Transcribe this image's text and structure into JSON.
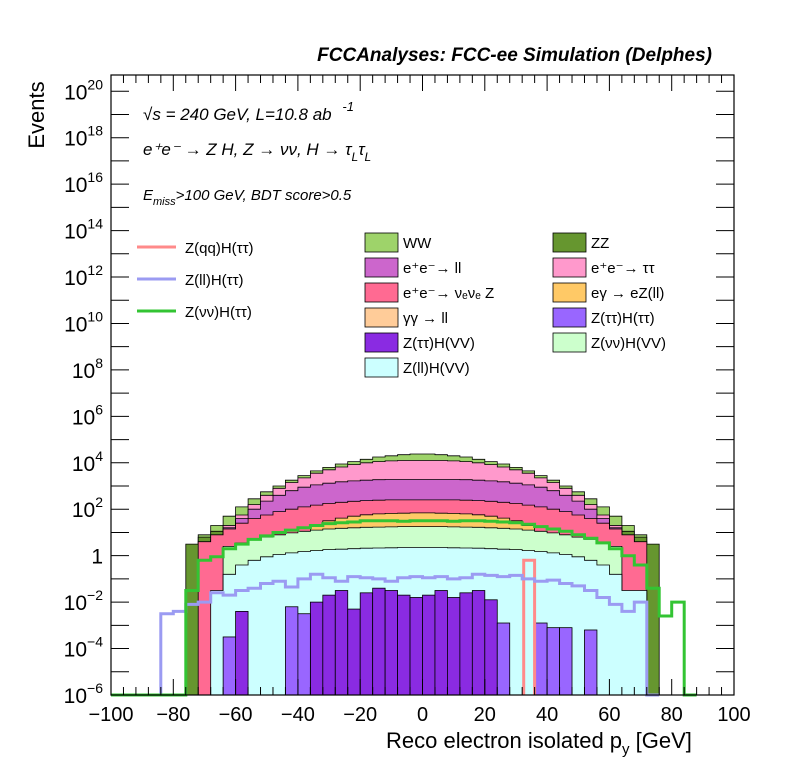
{
  "chart_data": {
    "type": "area",
    "title": "FCCAnalyses: FCC-ee Simulation (Delphes)",
    "xlabel": "Reco electron isolated p",
    "xlabel_sub": "y",
    "xlabel_unit": " [GeV]",
    "ylabel": "Events",
    "xlim": [
      -100,
      100
    ],
    "ylim_log10": [
      -6,
      20.7
    ],
    "y_log": true,
    "x_ticks": [
      "−100",
      "−80",
      "−60",
      "−40",
      "−20",
      "0",
      "20",
      "40",
      "60",
      "80",
      "100"
    ],
    "y_ticks": [
      {
        "exp": "-6",
        "label": "10",
        "sup": "−6"
      },
      {
        "exp": "-4",
        "label": "10",
        "sup": "−4"
      },
      {
        "exp": "-2",
        "label": "10",
        "sup": "−2"
      },
      {
        "exp": "0",
        "label": "1",
        "sup": ""
      },
      {
        "exp": "2",
        "label": "10",
        "sup": "2"
      },
      {
        "exp": "4",
        "label": "10",
        "sup": "4"
      },
      {
        "exp": "6",
        "label": "10",
        "sup": "6"
      },
      {
        "exp": "8",
        "label": "10",
        "sup": "8"
      },
      {
        "exp": "10",
        "label": "10",
        "sup": "10"
      },
      {
        "exp": "12",
        "label": "10",
        "sup": "12"
      },
      {
        "exp": "14",
        "label": "10",
        "sup": "14"
      },
      {
        "exp": "16",
        "label": "10",
        "sup": "16"
      },
      {
        "exp": "18",
        "label": "10",
        "sup": "18"
      },
      {
        "exp": "20",
        "label": "10",
        "sup": "20"
      }
    ],
    "annotations": {
      "energy": "= 240 GeV, L=10.8 ab",
      "energy_sqrt": "√s",
      "lumi_exp": "-1",
      "process": "e⁺e⁻ → Z H, Z → νν, H → τ",
      "process_sub": "L",
      "cuts": "E",
      "cuts_sub": "miss",
      "cuts_rest": ">100 GeV, BDT score>0.5"
    },
    "legend_signal": [
      {
        "name": "Z(qq)H(ττ)",
        "color": "#ff8a8a"
      },
      {
        "name": "Z(ll)H(ττ)",
        "color": "#9b9bf2"
      },
      {
        "name": "Z(νν)H(ττ)",
        "color": "#33c433"
      }
    ],
    "legend_bkg": [
      {
        "name": "WW",
        "color": "#9ed36a"
      },
      {
        "name": "ZZ",
        "color": "#66962f"
      },
      {
        "name": "e⁺e⁻→ ll",
        "color": "#cc66cc"
      },
      {
        "name": "e⁺e⁻→ ττ",
        "color": "#ff99cc"
      },
      {
        "name": "e⁺e⁻→ νₑνₑ Z",
        "color": "#ff6a92"
      },
      {
        "name": "eγ → eZ(ll)",
        "color": "#ffc966"
      },
      {
        "name": "γγ → ll",
        "color": "#ffcc99"
      },
      {
        "name": "Z(ττ)H(ττ)",
        "color": "#9966ff"
      },
      {
        "name": "Z(ττ)H(VV)",
        "color": "#8a2be2"
      },
      {
        "name": "Z(νν)H(VV)",
        "color": "#ccffcc"
      },
      {
        "name": "Z(ll)H(VV)",
        "color": "#ccffff"
      }
    ],
    "bin_edges_range": [
      -100,
      100
    ],
    "n_bins": 50,
    "stack_log10_tops": [
      {
        "name": "WW",
        "color": "#9ed36a",
        "values": [
          -9,
          -9,
          -9,
          -9,
          -9,
          -9,
          -9,
          0.9,
          1.3,
          1.7,
          2.1,
          2.45,
          2.75,
          3.0,
          3.25,
          3.45,
          3.65,
          3.8,
          3.95,
          4.05,
          4.15,
          4.25,
          4.3,
          4.35,
          4.38,
          4.38,
          4.35,
          4.3,
          4.25,
          4.15,
          4.05,
          3.95,
          3.8,
          3.65,
          3.45,
          3.25,
          3.0,
          2.75,
          2.45,
          2.1,
          1.7,
          1.3,
          0.9,
          -9,
          -9,
          -9,
          -9,
          -9,
          -9,
          -9
        ]
      },
      {
        "name": "ZZ",
        "color": "#66962f",
        "values": [
          -9,
          -9,
          -9,
          -9,
          -9,
          -9,
          0.5,
          0.8,
          1.05,
          1.3,
          1.55,
          1.8,
          2.0,
          2.2,
          2.4,
          2.55,
          2.7,
          2.8,
          2.9,
          3.0,
          3.05,
          3.1,
          3.12,
          3.15,
          3.15,
          3.15,
          3.15,
          3.12,
          3.1,
          3.05,
          3.0,
          2.9,
          2.8,
          2.7,
          2.55,
          2.4,
          2.2,
          2.0,
          1.8,
          1.55,
          1.3,
          1.05,
          0.8,
          0.5,
          -9,
          -9,
          -9,
          -9,
          -9,
          -9
        ]
      },
      {
        "name": "e+e- tt",
        "color": "#ff99cc",
        "values": [
          -9,
          -9,
          -9,
          -9,
          -9,
          -9,
          -9,
          -9,
          0.8,
          1.3,
          1.75,
          2.2,
          2.6,
          2.9,
          3.15,
          3.35,
          3.55,
          3.7,
          3.82,
          3.92,
          4.0,
          4.05,
          4.08,
          4.1,
          4.1,
          4.1,
          4.1,
          4.08,
          4.05,
          4.0,
          3.92,
          3.82,
          3.7,
          3.55,
          3.35,
          3.15,
          2.9,
          2.6,
          2.2,
          1.75,
          1.3,
          0.8,
          -9,
          -9,
          -9,
          -9,
          -9,
          -9,
          -9,
          -9
        ]
      },
      {
        "name": "e+e- ll",
        "color": "#cc66cc",
        "values": [
          -9,
          -9,
          -9,
          -9,
          -9,
          -9,
          -9,
          -9,
          0.7,
          1.2,
          1.6,
          2.0,
          2.35,
          2.6,
          2.8,
          2.95,
          3.05,
          3.12,
          3.18,
          3.22,
          3.25,
          3.27,
          3.28,
          3.28,
          3.28,
          3.28,
          3.28,
          3.28,
          3.27,
          3.25,
          3.22,
          3.18,
          3.12,
          3.05,
          2.95,
          2.8,
          2.6,
          2.35,
          2.0,
          1.6,
          1.2,
          0.7,
          -9,
          -9,
          -9,
          -9,
          -9,
          -9,
          -9,
          -9
        ]
      },
      {
        "name": "e+e- nunu Z",
        "color": "#ff6a92",
        "values": [
          -9,
          -9,
          -9,
          -9,
          -9,
          -9,
          -9,
          0.6,
          0.9,
          1.15,
          1.4,
          1.6,
          1.75,
          1.9,
          2.0,
          2.1,
          2.18,
          2.25,
          2.3,
          2.34,
          2.37,
          2.39,
          2.4,
          2.4,
          2.4,
          2.4,
          2.4,
          2.4,
          2.39,
          2.37,
          2.34,
          2.3,
          2.25,
          2.18,
          2.1,
          2.0,
          1.9,
          1.75,
          1.6,
          1.4,
          1.15,
          0.9,
          0.6,
          -9,
          -9,
          -9,
          -9,
          -9,
          -9,
          -9
        ]
      },
      {
        "name": "egamma",
        "color": "#ffc966",
        "values": [
          -9,
          -9,
          -9,
          -9,
          -9,
          -9,
          -9,
          -9,
          -9,
          -9,
          -9,
          -9,
          -9,
          -9,
          -9,
          -9,
          1.3,
          1.5,
          1.62,
          1.7,
          1.76,
          1.8,
          1.82,
          1.83,
          1.84,
          1.84,
          1.83,
          1.82,
          1.8,
          1.76,
          1.7,
          1.62,
          1.5,
          1.3,
          -9,
          -9,
          -9,
          -9,
          -9,
          -9,
          -9,
          -9,
          -9,
          -9,
          -9,
          -9,
          -9,
          -9,
          -9,
          -9
        ]
      },
      {
        "name": "Z(nunu)H(VV)",
        "color": "#ccffcc",
        "values": [
          -9,
          -9,
          -9,
          -9,
          -9,
          -9,
          -9,
          -9,
          -9,
          0.4,
          0.55,
          0.7,
          0.8,
          0.9,
          0.98,
          1.05,
          1.1,
          1.15,
          1.18,
          1.2,
          1.22,
          1.23,
          1.24,
          1.25,
          1.25,
          1.25,
          1.25,
          1.24,
          1.23,
          1.22,
          1.2,
          1.18,
          1.15,
          1.1,
          1.05,
          0.98,
          0.9,
          0.8,
          0.7,
          0.55,
          0.4,
          -9,
          -9,
          -9,
          -9,
          -9,
          -9,
          -9,
          -9,
          -9
        ]
      },
      {
        "name": "Z(ll)H(VV)",
        "color": "#ccffff",
        "values": [
          -9,
          -9,
          -9,
          -9,
          -9,
          -9,
          -9,
          -9,
          -1.5,
          -0.8,
          -0.4,
          -0.2,
          -0.05,
          0.05,
          0.12,
          0.18,
          0.22,
          0.26,
          0.28,
          0.3,
          0.32,
          0.33,
          0.34,
          0.35,
          0.35,
          0.35,
          0.35,
          0.34,
          0.33,
          0.32,
          0.3,
          0.28,
          0.26,
          0.22,
          0.18,
          0.12,
          0.05,
          -0.05,
          -0.2,
          -0.4,
          -0.8,
          -1.5,
          -1.5,
          -9,
          -9,
          -9,
          -9,
          -9,
          -9,
          -9
        ]
      }
    ],
    "purple_bars": [
      {
        "name": "Z(tautau)H(VV)",
        "color": "#8a2be2",
        "bins": [
          [
            10,
            -2.4
          ],
          [
            16,
            -2.0
          ],
          [
            17,
            -1.7
          ],
          [
            18,
            -1.5
          ],
          [
            19,
            -2.3
          ],
          [
            20,
            -1.6
          ],
          [
            21,
            -1.4
          ],
          [
            22,
            -1.5
          ],
          [
            23,
            -1.7
          ],
          [
            24,
            -1.8
          ],
          [
            25,
            -1.7
          ],
          [
            26,
            -1.5
          ],
          [
            27,
            -1.8
          ],
          [
            28,
            -1.6
          ],
          [
            29,
            -1.5
          ],
          [
            30,
            -1.9
          ]
        ]
      },
      {
        "name": "Z(tautau)H(tautau)",
        "color": "#9966ff",
        "bins": [
          [
            4,
            -9
          ],
          [
            9,
            -3.5
          ],
          [
            14,
            -2.2
          ],
          [
            15,
            -2.5
          ],
          [
            31,
            -2.9
          ],
          [
            34,
            -2.9
          ],
          [
            35,
            -3.1
          ],
          [
            36,
            -3.1
          ],
          [
            38,
            -3.2
          ]
        ]
      }
    ],
    "line_series": [
      {
        "name": "Z(qq)H(tautau)",
        "color": "#ff8a8a",
        "segments": [
          [
            [
              32.5,
              -6
            ],
            [
              32.5,
              -0.2
            ],
            [
              36,
              -0.2
            ],
            [
              36,
              -6
            ]
          ]
        ]
      },
      {
        "name": "Z(ll)H(tautau)",
        "color": "#9b9bf2",
        "steps": [
          [
            -100,
            -9
          ],
          [
            -88,
            -9
          ],
          [
            -84,
            -2.5
          ],
          [
            -80,
            -2.4
          ],
          [
            -76,
            -2.1
          ],
          [
            -72,
            -2.0
          ],
          [
            -68,
            -1.6
          ],
          [
            -64,
            -1.7
          ],
          [
            -60,
            -1.5
          ],
          [
            -56,
            -1.4
          ],
          [
            -52,
            -1.2
          ],
          [
            -48,
            -1.1
          ],
          [
            -44,
            -1.35
          ],
          [
            -40,
            -1.0
          ],
          [
            -36,
            -0.8
          ],
          [
            -32,
            -0.95
          ],
          [
            -28,
            -1.1
          ],
          [
            -24,
            -0.9
          ],
          [
            -20,
            -0.95
          ],
          [
            -16,
            -1.0
          ],
          [
            -12,
            -1.1
          ],
          [
            -8,
            -0.95
          ],
          [
            -4,
            -0.9
          ],
          [
            0,
            -0.95
          ],
          [
            4,
            -0.9
          ],
          [
            8,
            -1.0
          ],
          [
            12,
            -0.95
          ],
          [
            16,
            -0.8
          ],
          [
            20,
            -0.85
          ],
          [
            24,
            -0.9
          ],
          [
            28,
            -0.85
          ],
          [
            32,
            -1.0
          ],
          [
            36,
            -1.1
          ],
          [
            40,
            -1.05
          ],
          [
            44,
            -1.2
          ],
          [
            48,
            -1.3
          ],
          [
            52,
            -1.5
          ],
          [
            56,
            -1.8
          ],
          [
            60,
            -2.1
          ],
          [
            64,
            -2.4
          ],
          [
            68,
            -2.0
          ],
          [
            72,
            -6
          ],
          [
            76,
            -9
          ]
        ]
      },
      {
        "name": "Z(nunu)H(tautau)",
        "color": "#33c433",
        "steps": [
          [
            -100,
            -9
          ],
          [
            -76,
            -1.5
          ],
          [
            -72,
            -0.2
          ],
          [
            -68,
            -0.05
          ],
          [
            -64,
            0.3
          ],
          [
            -60,
            0.5
          ],
          [
            -56,
            0.7
          ],
          [
            -52,
            0.85
          ],
          [
            -48,
            1.0
          ],
          [
            -44,
            1.1
          ],
          [
            -40,
            1.2
          ],
          [
            -36,
            1.3
          ],
          [
            -32,
            1.38
          ],
          [
            -28,
            1.42
          ],
          [
            -24,
            1.45
          ],
          [
            -20,
            1.5
          ],
          [
            -16,
            1.5
          ],
          [
            -12,
            1.5
          ],
          [
            -8,
            1.48
          ],
          [
            -4,
            1.5
          ],
          [
            0,
            1.5
          ],
          [
            4,
            1.5
          ],
          [
            8,
            1.48
          ],
          [
            12,
            1.5
          ],
          [
            16,
            1.5
          ],
          [
            20,
            1.48
          ],
          [
            24,
            1.45
          ],
          [
            28,
            1.42
          ],
          [
            32,
            1.35
          ],
          [
            36,
            1.25
          ],
          [
            40,
            1.15
          ],
          [
            44,
            1.05
          ],
          [
            48,
            0.9
          ],
          [
            52,
            0.75
          ],
          [
            56,
            0.55
          ],
          [
            60,
            0.3
          ],
          [
            64,
            0.0
          ],
          [
            68,
            -0.4
          ],
          [
            72,
            -1.4
          ],
          [
            76,
            -2.6
          ],
          [
            80,
            -2.0
          ],
          [
            84,
            -6
          ],
          [
            88,
            -9
          ]
        ]
      }
    ]
  }
}
